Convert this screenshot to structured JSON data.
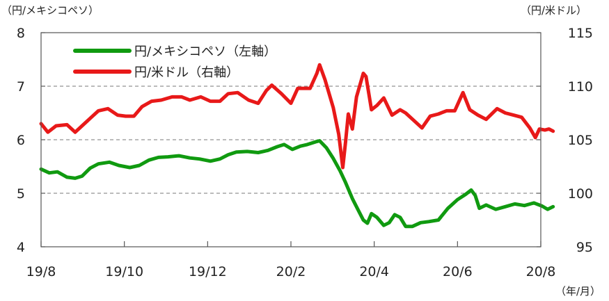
{
  "chart_data": {
    "type": "line",
    "left_axis_unit": "（円/メキシコペソ）",
    "right_axis_unit": "（円/米ドル）",
    "x_axis_unit": "（年/月）",
    "x_ticks": [
      "19/8",
      "19/10",
      "19/12",
      "20/2",
      "20/4",
      "20/6",
      "20/8"
    ],
    "left_ylim": [
      4,
      8
    ],
    "left_yticks": [
      "4",
      "5",
      "6",
      "7",
      "8"
    ],
    "right_ylim": [
      95,
      115
    ],
    "right_yticks": [
      "95",
      "100",
      "105",
      "110",
      "115"
    ],
    "gridlines": "dashed at 5, 6, 7 (left axis)",
    "legend_position": "top-left",
    "series": [
      {
        "name": "円/メキシコペソ（左軸）",
        "axis": "left",
        "color": "#109a10",
        "points": [
          [
            "2019-08-01",
            5.45
          ],
          [
            "2019-08-07",
            5.38
          ],
          [
            "2019-08-13",
            5.4
          ],
          [
            "2019-08-20",
            5.3
          ],
          [
            "2019-08-26",
            5.28
          ],
          [
            "2019-08-31",
            5.32
          ],
          [
            "2019-09-06",
            5.47
          ],
          [
            "2019-09-12",
            5.55
          ],
          [
            "2019-09-20",
            5.58
          ],
          [
            "2019-09-27",
            5.52
          ],
          [
            "2019-10-05",
            5.48
          ],
          [
            "2019-10-12",
            5.52
          ],
          [
            "2019-10-19",
            5.62
          ],
          [
            "2019-10-26",
            5.67
          ],
          [
            "2019-11-02",
            5.68
          ],
          [
            "2019-11-10",
            5.7
          ],
          [
            "2019-11-18",
            5.66
          ],
          [
            "2019-11-25",
            5.64
          ],
          [
            "2019-12-03",
            5.6
          ],
          [
            "2019-12-10",
            5.64
          ],
          [
            "2019-12-16",
            5.72
          ],
          [
            "2019-12-22",
            5.77
          ],
          [
            "2019-12-30",
            5.78
          ],
          [
            "2020-01-07",
            5.76
          ],
          [
            "2020-01-14",
            5.8
          ],
          [
            "2020-01-21",
            5.87
          ],
          [
            "2020-01-26",
            5.91
          ],
          [
            "2020-02-01",
            5.82
          ],
          [
            "2020-02-07",
            5.88
          ],
          [
            "2020-02-12",
            5.91
          ],
          [
            "2020-02-18",
            5.96
          ],
          [
            "2020-02-21",
            5.98
          ],
          [
            "2020-02-26",
            5.85
          ],
          [
            "2020-03-02",
            5.65
          ],
          [
            "2020-03-07",
            5.42
          ],
          [
            "2020-03-11",
            5.2
          ],
          [
            "2020-03-16",
            4.9
          ],
          [
            "2020-03-20",
            4.7
          ],
          [
            "2020-03-24",
            4.5
          ],
          [
            "2020-03-27",
            4.44
          ],
          [
            "2020-03-30",
            4.62
          ],
          [
            "2020-04-03",
            4.55
          ],
          [
            "2020-04-08",
            4.4
          ],
          [
            "2020-04-12",
            4.45
          ],
          [
            "2020-04-16",
            4.6
          ],
          [
            "2020-04-20",
            4.55
          ],
          [
            "2020-04-24",
            4.38
          ],
          [
            "2020-04-29",
            4.38
          ],
          [
            "2020-05-05",
            4.45
          ],
          [
            "2020-05-11",
            4.47
          ],
          [
            "2020-05-18",
            4.5
          ],
          [
            "2020-05-25",
            4.72
          ],
          [
            "2020-06-01",
            4.88
          ],
          [
            "2020-06-07",
            4.98
          ],
          [
            "2020-06-11",
            5.06
          ],
          [
            "2020-06-14",
            4.96
          ],
          [
            "2020-06-17",
            4.72
          ],
          [
            "2020-06-22",
            4.78
          ],
          [
            "2020-06-29",
            4.7
          ],
          [
            "2020-07-06",
            4.75
          ],
          [
            "2020-07-13",
            4.8
          ],
          [
            "2020-07-20",
            4.77
          ],
          [
            "2020-07-27",
            4.82
          ],
          [
            "2020-08-02",
            4.76
          ],
          [
            "2020-08-06",
            4.7
          ],
          [
            "2020-08-10",
            4.75
          ]
        ]
      },
      {
        "name": "円/米ドル（右軸）",
        "axis": "right",
        "color": "#e81919",
        "points": [
          [
            "2019-08-01",
            106.5
          ],
          [
            "2019-08-06",
            105.7
          ],
          [
            "2019-08-12",
            106.3
          ],
          [
            "2019-08-20",
            106.4
          ],
          [
            "2019-08-26",
            105.7
          ],
          [
            "2019-08-31",
            106.3
          ],
          [
            "2019-09-06",
            107.0
          ],
          [
            "2019-09-12",
            107.7
          ],
          [
            "2019-09-19",
            107.9
          ],
          [
            "2019-09-26",
            107.3
          ],
          [
            "2019-10-02",
            107.2
          ],
          [
            "2019-10-08",
            107.2
          ],
          [
            "2019-10-14",
            108.1
          ],
          [
            "2019-10-21",
            108.6
          ],
          [
            "2019-10-28",
            108.7
          ],
          [
            "2019-11-05",
            109.0
          ],
          [
            "2019-11-12",
            109.0
          ],
          [
            "2019-11-18",
            108.7
          ],
          [
            "2019-11-26",
            109.0
          ],
          [
            "2019-12-03",
            108.6
          ],
          [
            "2019-12-10",
            108.6
          ],
          [
            "2019-12-16",
            109.3
          ],
          [
            "2019-12-23",
            109.4
          ],
          [
            "2019-12-31",
            108.7
          ],
          [
            "2020-01-07",
            108.4
          ],
          [
            "2020-01-13",
            109.6
          ],
          [
            "2020-01-17",
            110.1
          ],
          [
            "2020-01-24",
            109.3
          ],
          [
            "2020-01-31",
            108.4
          ],
          [
            "2020-02-05",
            109.8
          ],
          [
            "2020-02-10",
            109.8
          ],
          [
            "2020-02-14",
            109.8
          ],
          [
            "2020-02-19",
            111.2
          ],
          [
            "2020-02-21",
            112.0
          ],
          [
            "2020-02-25",
            110.6
          ],
          [
            "2020-03-02",
            108.0
          ],
          [
            "2020-03-06",
            105.5
          ],
          [
            "2020-03-09",
            102.4
          ],
          [
            "2020-03-11",
            104.8
          ],
          [
            "2020-03-13",
            107.4
          ],
          [
            "2020-03-16",
            106.0
          ],
          [
            "2020-03-19",
            109.0
          ],
          [
            "2020-03-24",
            111.2
          ],
          [
            "2020-03-26",
            110.9
          ],
          [
            "2020-03-30",
            107.8
          ],
          [
            "2020-04-03",
            108.2
          ],
          [
            "2020-04-08",
            108.9
          ],
          [
            "2020-04-14",
            107.3
          ],
          [
            "2020-04-20",
            107.8
          ],
          [
            "2020-04-24",
            107.5
          ],
          [
            "2020-04-30",
            106.8
          ],
          [
            "2020-05-06",
            106.1
          ],
          [
            "2020-05-12",
            107.2
          ],
          [
            "2020-05-18",
            107.4
          ],
          [
            "2020-05-24",
            107.7
          ],
          [
            "2020-05-30",
            107.7
          ],
          [
            "2020-06-05",
            109.4
          ],
          [
            "2020-06-10",
            107.8
          ],
          [
            "2020-06-16",
            107.3
          ],
          [
            "2020-06-22",
            106.9
          ],
          [
            "2020-06-30",
            107.9
          ],
          [
            "2020-07-06",
            107.5
          ],
          [
            "2020-07-12",
            107.3
          ],
          [
            "2020-07-18",
            107.1
          ],
          [
            "2020-07-24",
            106.1
          ],
          [
            "2020-07-28",
            105.2
          ],
          [
            "2020-07-31",
            106.0
          ],
          [
            "2020-08-04",
            105.9
          ],
          [
            "2020-08-07",
            106.0
          ],
          [
            "2020-08-10",
            105.8
          ]
        ]
      }
    ]
  }
}
